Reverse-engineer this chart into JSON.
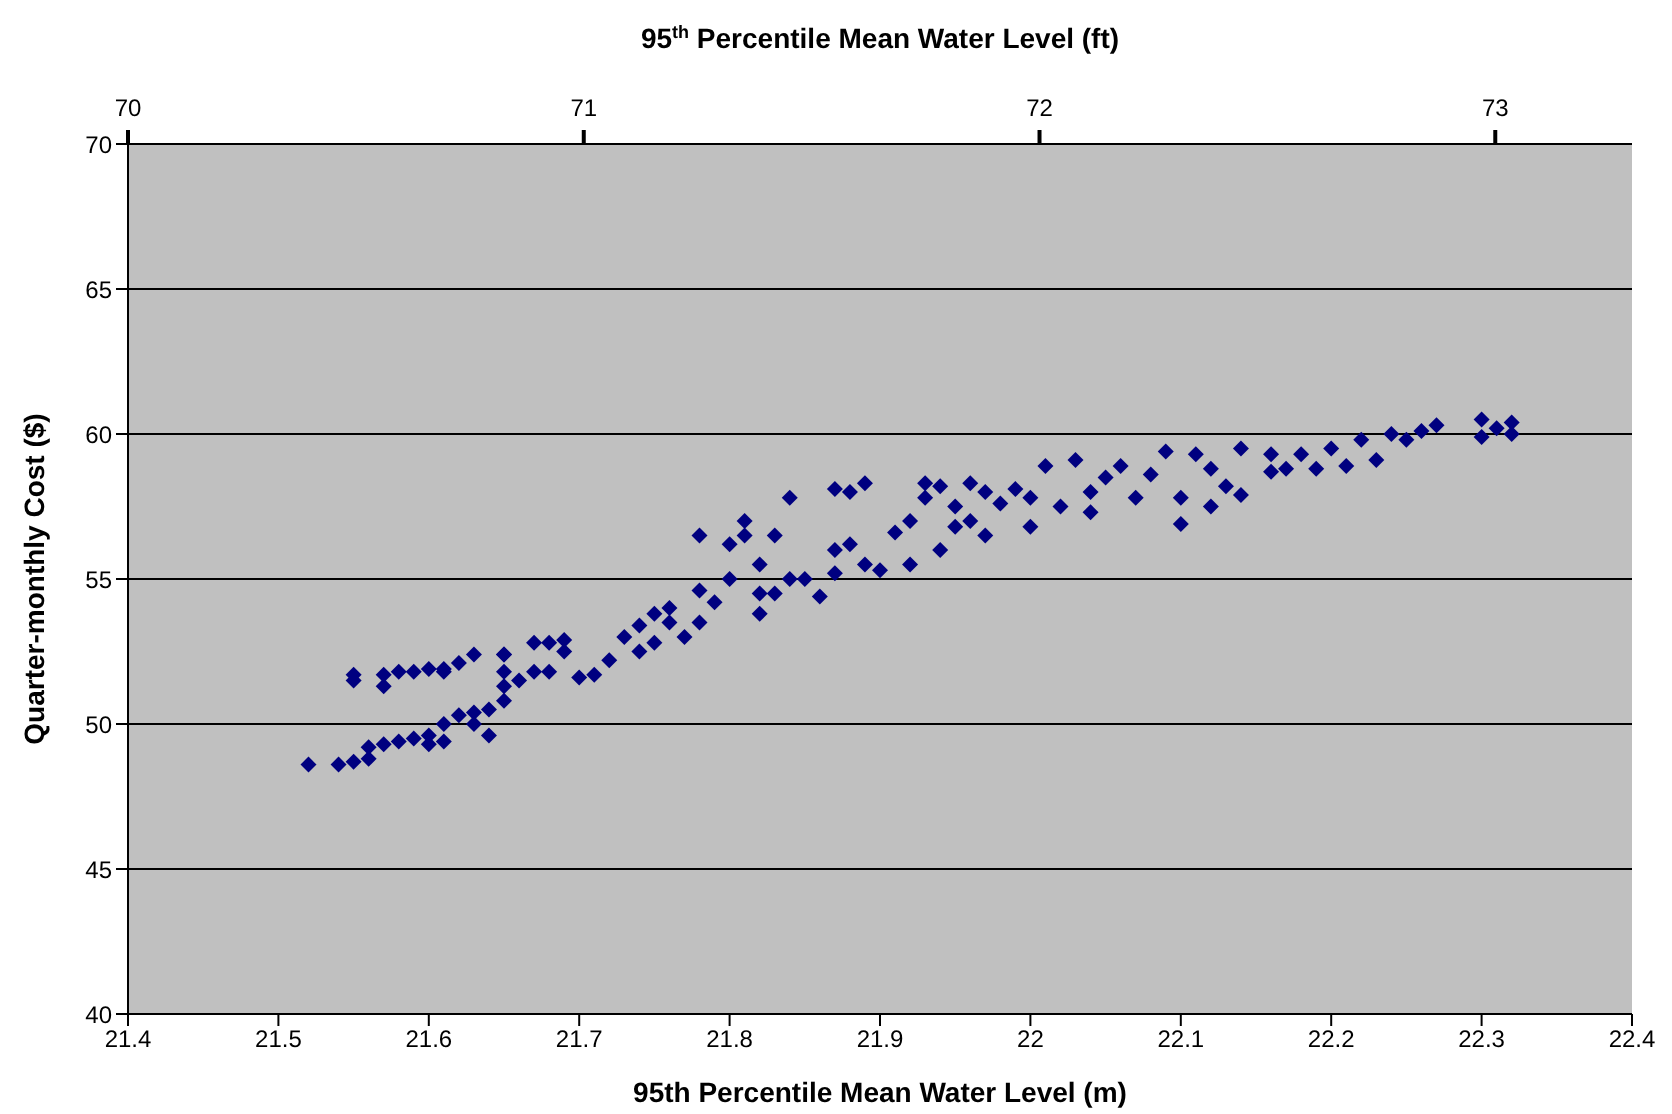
{
  "chart_data": {
    "type": "scatter",
    "xlabel": "95th Percentile Mean Water Level (m)",
    "ylabel": "Quarter-monthly Cost ($)",
    "x2label": "95$^{th}$ Percentile Mean Water Level (ft)",
    "xlim": [
      21.4,
      22.4
    ],
    "xticks": [
      21.4,
      21.5,
      21.6,
      21.7,
      21.8,
      21.9,
      22,
      22.1,
      22.2,
      22.3,
      22.4
    ],
    "x2lim": [
      70,
      73.3
    ],
    "x2ticks": [
      70,
      71,
      72,
      73
    ],
    "ylim": [
      40,
      70
    ],
    "yticks": [
      40,
      45,
      50,
      55,
      60,
      65,
      70
    ],
    "grid": "y",
    "legend": false,
    "marker": "diamond",
    "series": [
      {
        "color": "#000080",
        "x": [
          21.52,
          21.54,
          21.55,
          21.56,
          21.56,
          21.57,
          21.58,
          21.59,
          21.6,
          21.6,
          21.61,
          21.61,
          21.62,
          21.63,
          21.63,
          21.64,
          21.64,
          21.65,
          21.65,
          21.65,
          21.65,
          21.66,
          21.67,
          21.55,
          21.55,
          21.57,
          21.57,
          21.58,
          21.59,
          21.6,
          21.61,
          21.61,
          21.62,
          21.63,
          21.65,
          21.67,
          21.68,
          21.69,
          21.69,
          21.68,
          21.7,
          21.71,
          21.72,
          21.73,
          21.74,
          21.74,
          21.75,
          21.75,
          21.76,
          21.76,
          21.77,
          21.78,
          21.78,
          21.78,
          21.79,
          21.8,
          21.8,
          21.81,
          21.81,
          21.82,
          21.82,
          21.82,
          21.83,
          21.83,
          21.84,
          21.84,
          21.85,
          21.86,
          21.87,
          21.87,
          21.87,
          21.88,
          21.88,
          21.89,
          21.89,
          21.9,
          21.91,
          21.92,
          21.92,
          21.93,
          21.93,
          21.94,
          21.94,
          21.95,
          21.95,
          21.96,
          21.96,
          21.97,
          21.97,
          21.98,
          21.99,
          22,
          22,
          22.01,
          22.02,
          22.03,
          22.04,
          22.04,
          22.05,
          22.06,
          22.07,
          22.08,
          22.09,
          22.1,
          22.1,
          22.11,
          22.12,
          22.12,
          22.13,
          22.14,
          22.14,
          22.16,
          22.16,
          22.17,
          22.18,
          22.19,
          22.2,
          22.21,
          22.22,
          22.23,
          22.24,
          22.25,
          22.26,
          22.27,
          22.3,
          22.3,
          22.31,
          22.32,
          22.32
        ],
        "values": [
          48.6,
          48.6,
          48.7,
          48.8,
          49.2,
          49.3,
          49.4,
          49.5,
          49.3,
          49.6,
          50,
          49.4,
          50.3,
          50.4,
          50,
          49.6,
          50.5,
          50.8,
          51.3,
          51.8,
          52.4,
          51.5,
          51.8,
          51.7,
          51.5,
          51.7,
          51.3,
          51.8,
          51.8,
          51.9,
          51.9,
          51.8,
          52.1,
          52.4,
          52.4,
          52.8,
          52.8,
          52.9,
          52.5,
          51.8,
          51.6,
          51.7,
          52.2,
          53,
          53.4,
          52.5,
          53.8,
          52.8,
          53.5,
          54,
          53,
          54.6,
          56.5,
          53.5,
          54.2,
          55,
          56.2,
          56.5,
          57,
          53.8,
          54.5,
          55.5,
          56.5,
          54.5,
          55,
          57.8,
          55,
          54.4,
          55.2,
          56,
          58.1,
          58,
          56.2,
          55.5,
          58.3,
          55.3,
          56.6,
          55.5,
          57,
          58.3,
          57.8,
          56,
          58.2,
          56.8,
          57.5,
          58.3,
          57,
          56.5,
          58,
          57.6,
          58.1,
          56.8,
          57.8,
          58.9,
          57.5,
          59.1,
          58,
          57.3,
          58.5,
          58.9,
          57.8,
          58.6,
          59.4,
          56.9,
          57.8,
          59.3,
          57.5,
          58.8,
          58.2,
          59.5,
          57.9,
          58.7,
          59.3,
          58.8,
          59.3,
          58.8,
          59.5,
          58.9,
          59.8,
          59.1,
          60,
          59.8,
          60.1,
          60.3,
          59.9,
          60.5,
          60.2,
          60.4,
          60
        ]
      }
    ]
  }
}
